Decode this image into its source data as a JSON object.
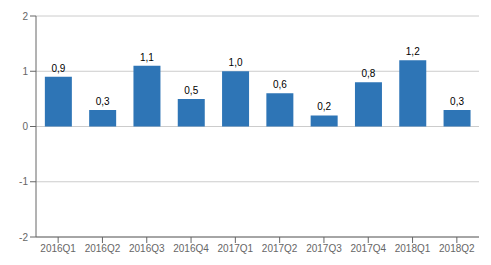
{
  "chart_data": {
    "type": "bar",
    "categories": [
      "2016Q1",
      "2016Q2",
      "2016Q3",
      "2016Q4",
      "2017Q1",
      "2017Q2",
      "2017Q3",
      "2017Q4",
      "2018Q1",
      "2018Q2"
    ],
    "values": [
      0.9,
      0.3,
      1.1,
      0.5,
      1.0,
      0.6,
      0.2,
      0.8,
      1.2,
      0.3
    ],
    "value_labels": [
      "0,9",
      "0,3",
      "1,1",
      "0,5",
      "1,0",
      "0,6",
      "0,2",
      "0,8",
      "1,2",
      "0,3"
    ],
    "color": "#2E75B6",
    "ylim": [
      -2,
      2
    ],
    "yticks": [
      -2,
      -1,
      0,
      1,
      2
    ],
    "grid": true
  }
}
